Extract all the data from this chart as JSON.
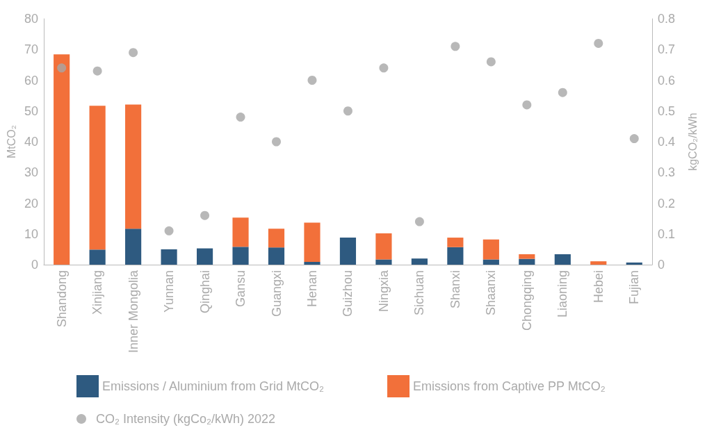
{
  "chart_data": {
    "type": "bar",
    "stacked": true,
    "ylabel": "MtCO₂",
    "y2label": "kgCO₂/kWh",
    "categories": [
      "Shandong",
      "Xinjiang",
      "Inner Mongolia",
      "Yunnan",
      "Qinghai",
      "Gansu",
      "Guangxi",
      "Henan",
      "Guizhou",
      "Ningxia",
      "Sichuan",
      "Shanxi",
      "Shaanxi",
      "Chongqing",
      "Liaoning",
      "Hebei",
      "Fujian"
    ],
    "series": [
      {
        "name": "Emissions / Aluminium from Grid MtCO₂",
        "color": "#2e5a80",
        "values": [
          0,
          4.9,
          11.7,
          5.0,
          5.3,
          5.8,
          5.6,
          0.9,
          8.8,
          1.7,
          2.0,
          5.7,
          1.7,
          1.9,
          3.4,
          0,
          0.7
        ]
      },
      {
        "name": "Emissions from Captive PP MtCO₂",
        "color": "#f2703a",
        "values": [
          68.4,
          46.8,
          40.4,
          0,
          0,
          9.5,
          6.1,
          12.8,
          0,
          8.5,
          0,
          3.1,
          6.5,
          1.5,
          0,
          1.1,
          0
        ]
      },
      {
        "name": "CO₂ Intensity (kgCo₂/kWh) 2022",
        "type": "scatter",
        "axis": "y2",
        "marker": "circle",
        "color": "#a6a6a6",
        "values": [
          0.64,
          0.63,
          0.69,
          0.11,
          0.16,
          0.48,
          0.4,
          0.6,
          0.5,
          0.64,
          0.14,
          0.71,
          0.66,
          0.52,
          0.56,
          0.72,
          0.41
        ]
      }
    ],
    "ylim": [
      0,
      80
    ],
    "yticks": [
      0,
      10,
      20,
      30,
      40,
      50,
      60,
      70,
      80
    ],
    "y2lim": [
      0,
      0.8
    ],
    "y2ticks": [
      0,
      0.1,
      0.2,
      0.3,
      0.4,
      0.5,
      0.6,
      0.7,
      0.8
    ],
    "grid": false,
    "legend": "bottom"
  }
}
